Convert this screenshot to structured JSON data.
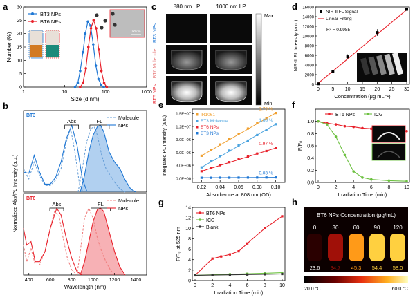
{
  "chart_data": [
    {
      "panel": "a",
      "type": "line",
      "xlabel": "Size (d.nm)",
      "ylabel": "Number (%)",
      "xscale": "log",
      "xlim": [
        1,
        1000
      ],
      "ylim": [
        0,
        30
      ],
      "xticks": [
        1,
        10,
        100,
        1000
      ],
      "xtick_labels": [
        "1",
        "10",
        "100",
        "1000"
      ],
      "yticks": [
        0,
        5,
        10,
        15,
        20,
        25,
        30
      ],
      "ytick_labels": [
        "0",
        "5",
        "10",
        "15",
        "20",
        "25",
        "30"
      ],
      "series": [
        {
          "name": "BT3 NPs",
          "color": "#1f77d4",
          "x": [
            18,
            21,
            24,
            28,
            32,
            37,
            43,
            50,
            58,
            67,
            78,
            90
          ],
          "y": [
            0,
            1.5,
            6,
            13,
            20,
            24.5,
            23,
            16,
            8,
            3,
            0.8,
            0
          ]
        },
        {
          "name": "BT6 NPs",
          "color": "#e8202a",
          "x": [
            24,
            28,
            33,
            38,
            44,
            51,
            59,
            68,
            79,
            92,
            107
          ],
          "y": [
            0,
            1.5,
            7,
            15,
            22,
            25,
            22,
            14,
            6,
            1.5,
            0
          ]
        }
      ],
      "inset_scale_label": "100 nm"
    },
    {
      "panel": "b",
      "type": "line",
      "xlabel": "Wavelength (nm)",
      "ylabel": "Normalized Abs/PL Intensity (a.u.)",
      "xlim": [
        350,
        1500
      ],
      "xticks": [
        400,
        600,
        800,
        1000,
        1200,
        1400
      ],
      "xtick_labels": [
        "400",
        "600",
        "800",
        "1000",
        "1200",
        "1400"
      ],
      "subplots": [
        {
          "tag": "BT3",
          "abs_label": "Abs",
          "fl_label": "FL",
          "legend": [
            "Molecule",
            "NPs"
          ],
          "abs_peak_nm": 800,
          "fl_peak_nm": 1060,
          "series": [
            {
              "name": "Molecule Abs",
              "color": "#6aa0d8",
              "style": "dashed",
              "x": [
                350,
                400,
                450,
                500,
                550,
                600,
                650,
                700,
                750,
                790,
                830,
                870,
                900
              ],
              "y": [
                0.35,
                0.2,
                0.45,
                0.25,
                0.1,
                0.1,
                0.18,
                0.35,
                0.75,
                0.95,
                0.6,
                0.15,
                0.02
              ]
            },
            {
              "name": "NPs Abs",
              "color": "#1f77d4",
              "style": "solid",
              "x": [
                350,
                400,
                450,
                500,
                550,
                600,
                650,
                700,
                750,
                800,
                850,
                900,
                940
              ],
              "y": [
                0.3,
                0.28,
                0.55,
                0.3,
                0.12,
                0.12,
                0.22,
                0.45,
                0.8,
                1.0,
                0.7,
                0.2,
                0.02
              ]
            },
            {
              "name": "Molecule FL",
              "color": "#6aa0d8",
              "style": "dashed",
              "x": [
                860,
                900,
                940,
                980,
                1010,
                1040,
                1080,
                1120,
                1160,
                1200,
                1250,
                1300
              ],
              "y": [
                0.0,
                0.35,
                0.75,
                0.95,
                0.98,
                0.85,
                0.55,
                0.35,
                0.25,
                0.15,
                0.05,
                0.0
              ]
            },
            {
              "name": "NPs FL",
              "color": "#1f77d4",
              "style": "solid",
              "x": [
                880,
                920,
                960,
                1000,
                1040,
                1070,
                1100,
                1150,
                1200,
                1250,
                1300,
                1350,
                1400
              ],
              "y": [
                0.0,
                0.25,
                0.6,
                0.85,
                0.98,
                1.0,
                0.9,
                0.6,
                0.45,
                0.35,
                0.18,
                0.05,
                0.0
              ]
            }
          ]
        },
        {
          "tag": "BT6",
          "abs_label": "Abs",
          "fl_label": "FL",
          "legend": [
            "Molecule",
            "NPs"
          ],
          "abs_peak_nm": 660,
          "fl_peak_nm": 1070,
          "series": [
            {
              "name": "Molecule Abs",
              "color": "#f08080",
              "style": "dashed",
              "x": [
                350,
                380,
                420,
                460,
                500,
                550,
                600,
                640,
                680,
                720,
                760,
                800,
                850
              ],
              "y": [
                0.45,
                0.2,
                0.4,
                0.15,
                0.15,
                0.35,
                0.7,
                0.95,
                0.9,
                0.55,
                0.25,
                0.08,
                0.0
              ]
            },
            {
              "name": "NPs Abs",
              "color": "#e8202a",
              "style": "solid",
              "x": [
                350,
                380,
                420,
                460,
                500,
                550,
                600,
                660,
                700,
                750,
                800,
                850,
                900
              ],
              "y": [
                0.7,
                0.45,
                0.5,
                0.2,
                0.2,
                0.35,
                0.7,
                1.0,
                0.9,
                0.55,
                0.25,
                0.05,
                0.0
              ]
            },
            {
              "name": "Molecule FL",
              "color": "#f08080",
              "style": "dashed",
              "x": [
                850,
                880,
                920,
                960,
                1000,
                1040,
                1080,
                1120,
                1160,
                1200
              ],
              "y": [
                0.0,
                0.35,
                0.85,
                1.0,
                0.85,
                0.55,
                0.35,
                0.2,
                0.08,
                0.0
              ]
            },
            {
              "name": "NPs FL",
              "color": "#e8202a",
              "style": "solid",
              "x": [
                880,
                920,
                960,
                1000,
                1040,
                1070,
                1100,
                1150,
                1200,
                1250,
                1300
              ],
              "y": [
                0.0,
                0.2,
                0.5,
                0.8,
                0.98,
                1.0,
                0.95,
                0.65,
                0.35,
                0.12,
                0.0
              ]
            }
          ]
        }
      ]
    },
    {
      "panel": "c",
      "type": "image",
      "column_labels": [
        "880 nm LP",
        "1000 nm LP"
      ],
      "row_labels": [
        "BT3 NPs",
        "BT6 Molecule",
        "BT6 NPs"
      ],
      "colorbar_labels": [
        "Max",
        "Min"
      ]
    },
    {
      "panel": "d",
      "type": "scatter",
      "xlabel": "Concentration (μg mL⁻¹)",
      "ylabel": "NIR-II FL Intensity (a.u.)",
      "xlim": [
        0,
        30
      ],
      "ylim": [
        0,
        16000
      ],
      "xticks": [
        0,
        5,
        10,
        15,
        20,
        25,
        30
      ],
      "yticks": [
        0,
        2000,
        4000,
        6000,
        8000,
        10000,
        12000,
        14000,
        16000
      ],
      "x": [
        0,
        5,
        10,
        20,
        30
      ],
      "y": [
        100,
        2600,
        5700,
        10700,
        15500
      ],
      "errors": [
        80,
        200,
        500,
        700,
        300
      ],
      "fit": {
        "label": "Linear Fitting",
        "x": [
          0,
          30
        ],
        "y": [
          200,
          15400
        ],
        "r2_text": "R² = 0.9985"
      },
      "legend": [
        "NIR-II FL Signal",
        "Linear Fitting"
      ]
    },
    {
      "panel": "e",
      "type": "scatter",
      "xlabel": "Absorbance at 808 nm (OD)",
      "ylabel": "Integrated PL Intensity (a.u.)",
      "xlim": [
        0.01,
        0.11
      ],
      "ylim": [
        -1000000,
        16000000
      ],
      "xticks": [
        0.02,
        0.04,
        0.06,
        0.08,
        0.1
      ],
      "xtick_labels": [
        "0.02",
        "0.04",
        "0.06",
        "0.08",
        "0.10"
      ],
      "yticks": [
        0,
        3000000,
        6000000,
        9000000,
        12000000,
        15000000
      ],
      "ytick_labels": [
        "0.0E+00",
        "3.0E+06",
        "6.0E+06",
        "9.0E+06",
        "1.2E+07",
        "1.5E+07"
      ],
      "series": [
        {
          "name": "IR1061",
          "color": "#f0a030",
          "qy": "1.70 %",
          "x": [
            0.02,
            0.03,
            0.04,
            0.05,
            0.06,
            0.07,
            0.08,
            0.09,
            0.1
          ],
          "y": [
            5200000,
            6600000,
            7800000,
            9100000,
            10200000,
            11500000,
            12800000,
            13900000,
            15100000
          ]
        },
        {
          "name": "BT3 Molecule",
          "color": "#4aa3df",
          "qy": "1.68 %",
          "x": [
            0.02,
            0.03,
            0.04,
            0.05,
            0.06,
            0.07,
            0.08,
            0.09,
            0.1
          ],
          "y": [
            2500000,
            3900000,
            5100000,
            6400000,
            7600000,
            8700000,
            10000000,
            11200000,
            12500000
          ]
        },
        {
          "name": "BT6 NPs",
          "color": "#e8202a",
          "qy": "0.97 %",
          "x": [
            0.02,
            0.03,
            0.04,
            0.05,
            0.06,
            0.07,
            0.08,
            0.09,
            0.1
          ],
          "y": [
            1600000,
            2400000,
            3000000,
            3700000,
            4400000,
            5000000,
            5700000,
            6300000,
            7000000
          ]
        },
        {
          "name": "BT3 NPs",
          "color": "#1f77d4",
          "qy": "0.03 %",
          "x": [
            0.02,
            0.03,
            0.04,
            0.05,
            0.06,
            0.07,
            0.08,
            0.09,
            0.1
          ],
          "y": [
            100000,
            100000,
            120000,
            120000,
            130000,
            140000,
            150000,
            160000,
            180000
          ]
        }
      ]
    },
    {
      "panel": "f",
      "type": "line",
      "xlabel": "Irradiation Time (min)",
      "ylabel": "F/F₀",
      "xlim": [
        0,
        10
      ],
      "ylim": [
        0,
        1.2
      ],
      "xticks": [
        0,
        2,
        4,
        6,
        8,
        10
      ],
      "yticks": [
        0.0,
        0.2,
        0.4,
        0.6,
        0.8,
        1.0
      ],
      "ytick_labels": [
        "0.0",
        "0.2",
        "0.4",
        "0.6",
        "0.8",
        "1.0"
      ],
      "series": [
        {
          "name": "BT6 NPs",
          "color": "#e8202a",
          "x": [
            0,
            1,
            2,
            3,
            4,
            5,
            6,
            7,
            8,
            9,
            10
          ],
          "y": [
            1.0,
            0.97,
            0.95,
            0.92,
            0.91,
            0.89,
            0.88,
            0.87,
            0.86,
            0.85,
            0.84
          ]
        },
        {
          "name": "ICG",
          "color": "#6cc040",
          "x": [
            0,
            1,
            2,
            3,
            4,
            5,
            6,
            8,
            10
          ],
          "y": [
            1.0,
            0.95,
            0.75,
            0.45,
            0.18,
            0.08,
            0.05,
            0.03,
            0.02
          ]
        }
      ]
    },
    {
      "panel": "g",
      "type": "line",
      "xlabel": "Irradiation Time (min)",
      "ylabel": "F/F₀ at 525 nm",
      "xlim": [
        0,
        10
      ],
      "ylim": [
        0,
        14
      ],
      "xticks": [
        0,
        2,
        4,
        6,
        8,
        10
      ],
      "yticks": [
        0,
        2,
        4,
        6,
        8,
        10,
        12,
        14
      ],
      "series": [
        {
          "name": "BT6 NPs",
          "color": "#e8202a",
          "x": [
            0,
            2,
            3,
            4,
            5,
            6,
            8,
            10
          ],
          "y": [
            1.0,
            4.2,
            4.6,
            5.0,
            5.6,
            7.1,
            10.0,
            12.3
          ]
        },
        {
          "name": "ICG",
          "color": "#6cc040",
          "x": [
            0,
            2,
            4,
            6,
            8,
            10
          ],
          "y": [
            1.0,
            1.1,
            1.2,
            1.3,
            1.4,
            1.5
          ]
        },
        {
          "name": "Blank",
          "color": "#333333",
          "x": [
            0,
            2,
            4,
            6,
            8,
            10
          ],
          "y": [
            1.0,
            1.05,
            1.1,
            1.15,
            1.2,
            1.25
          ]
        }
      ]
    },
    {
      "panel": "h",
      "type": "heatmap",
      "title": "BT6 NPs Concentration (μg/mL)",
      "concentrations": [
        "0",
        "30",
        "60",
        "90",
        "120"
      ],
      "temperatures": [
        "23.6",
        "34.7",
        "45.3",
        "54.4",
        "58.0"
      ],
      "temp_values": [
        23.6,
        34.7,
        45.3,
        54.4,
        58.0
      ],
      "scale_min": "20.0 °C",
      "scale_max": "60.0 °C"
    }
  ],
  "panel_letters": [
    "a",
    "b",
    "c",
    "d",
    "e",
    "f",
    "g",
    "h"
  ]
}
